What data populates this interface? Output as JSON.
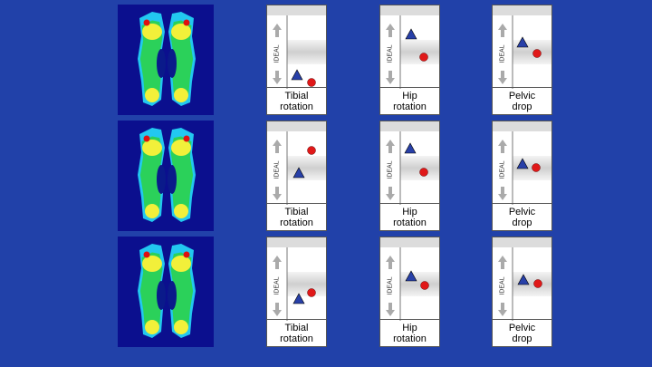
{
  "rows": [
    {
      "panels": [
        {
          "label": "Tibial rotation",
          "ideal": "IDEAL"
        },
        {
          "label": "Hip rotation",
          "ideal": "IDEAL"
        },
        {
          "label": "Pelvic drop",
          "ideal": "IDEAL"
        }
      ]
    },
    {
      "panels": [
        {
          "label": "Tibial rotation",
          "ideal": "IDEAL"
        },
        {
          "label": "Hip rotation",
          "ideal": "IDEAL"
        },
        {
          "label": "Pelvic drop",
          "ideal": "IDEAL"
        }
      ]
    },
    {
      "panels": [
        {
          "label": "Tibial rotation",
          "ideal": "IDEAL"
        },
        {
          "label": "Hip rotation",
          "ideal": "IDEAL"
        },
        {
          "label": "Pelvic drop",
          "ideal": "IDEAL"
        }
      ]
    }
  ]
}
